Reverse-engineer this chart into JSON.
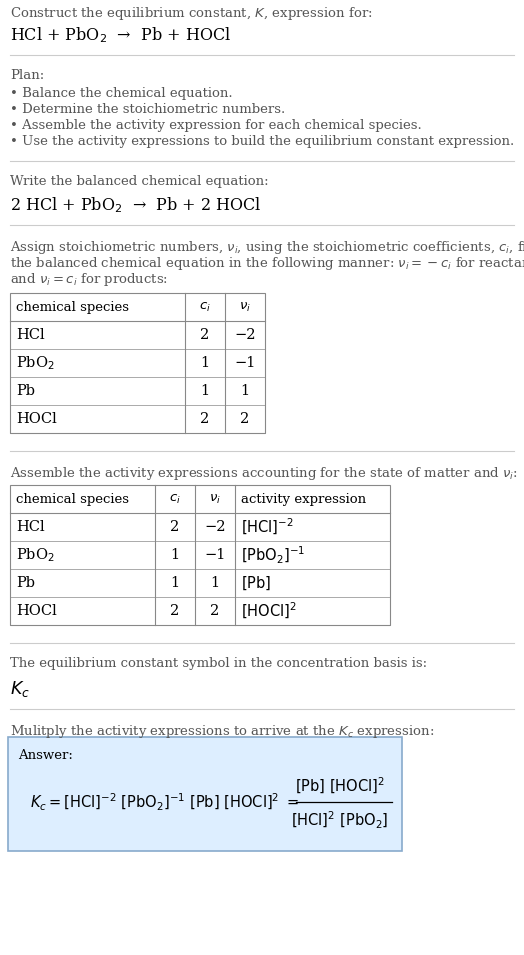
{
  "bg_color": "#ffffff",
  "text_color": "#000000",
  "gray_text": "#555555",
  "line_color": "#aaaaaa",
  "answer_box_color": "#ddeeff",
  "answer_box_edge": "#88aacc",
  "font_size": 10.5,
  "small_font": 9.5,
  "title_line1": "Construct the equilibrium constant, $K$, expression for:",
  "title_line2": "HCl + PbO$_2$  →  Pb + HOCl",
  "plan_header": "Plan:",
  "plan_bullets": [
    "• Balance the chemical equation.",
    "• Determine the stoichiometric numbers.",
    "• Assemble the activity expression for each chemical species.",
    "• Use the activity expressions to build the equilibrium constant expression."
  ],
  "balanced_header": "Write the balanced chemical equation:",
  "balanced_eq": "2 HCl + PbO$_2$  →  Pb + 2 HOCl",
  "stoich_lines": [
    "Assign stoichiometric numbers, $\\nu_i$, using the stoichiometric coefficients, $c_i$, from",
    "the balanced chemical equation in the following manner: $\\nu_i = -c_i$ for reactants",
    "and $\\nu_i = c_i$ for products:"
  ],
  "table1_cols": [
    "chemical species",
    "$c_i$",
    "$\\nu_i$"
  ],
  "table1_rows": [
    [
      "HCl",
      "2",
      "−2"
    ],
    [
      "PbO$_2$",
      "1",
      "−1"
    ],
    [
      "Pb",
      "1",
      "1"
    ],
    [
      "HOCl",
      "2",
      "2"
    ]
  ],
  "assemble_header": "Assemble the activity expressions accounting for the state of matter and $\\nu_i$:",
  "table2_cols": [
    "chemical species",
    "$c_i$",
    "$\\nu_i$",
    "activity expression"
  ],
  "table2_rows": [
    [
      "HCl",
      "2",
      "−2",
      "$[\\mathrm{HCl}]^{-2}$"
    ],
    [
      "PbO$_2$",
      "1",
      "−1",
      "$[\\mathrm{PbO_2}]^{-1}$"
    ],
    [
      "Pb",
      "1",
      "1",
      "$[\\mathrm{Pb}]$"
    ],
    [
      "HOCl",
      "2",
      "2",
      "$[\\mathrm{HOCl}]^{2}$"
    ]
  ],
  "kc_header": "The equilibrium constant symbol in the concentration basis is:",
  "kc_symbol": "$K_c$",
  "multiply_header": "Mulitply the activity expressions to arrive at the $K_c$ expression:",
  "answer_label": "Answer:"
}
